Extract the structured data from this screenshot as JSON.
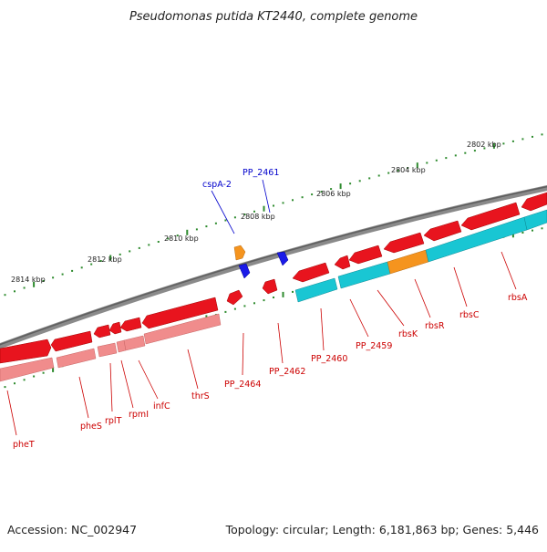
{
  "title": "Pseudomonas putida KT2440, complete genome",
  "footer": {
    "accession": "Accession: NC_002947",
    "summary": "Topology: circular; Length: 6,181,863 bp; Genes: 5,446"
  },
  "colors": {
    "backbone": "#7f7f7f",
    "ticks": "#2e8b2e",
    "gene_red": "#e8141e",
    "gene_pink": "#f08c8c",
    "gene_cyan": "#19c6d3",
    "gene_orange": "#f5941e",
    "gene_blue": "#1a1ae8",
    "label_red": "#cc0000",
    "label_blue": "#0000cc"
  },
  "tick_labels": [
    "2814 kbp",
    "2812 kbp",
    "2810 kbp",
    "2808 kbp",
    "2806 kbp",
    "2804 kbp",
    "2802 kbp"
  ],
  "genes_below": [
    "pheT",
    "pheS",
    "rplT",
    "rpmI",
    "infC",
    "thrS",
    "PP_2464",
    "PP_2462",
    "PP_2460",
    "PP_2459",
    "rbsK",
    "rbsR",
    "rbsC",
    "rbsA"
  ],
  "genes_above": [
    "cspA-2",
    "PP_2461"
  ]
}
